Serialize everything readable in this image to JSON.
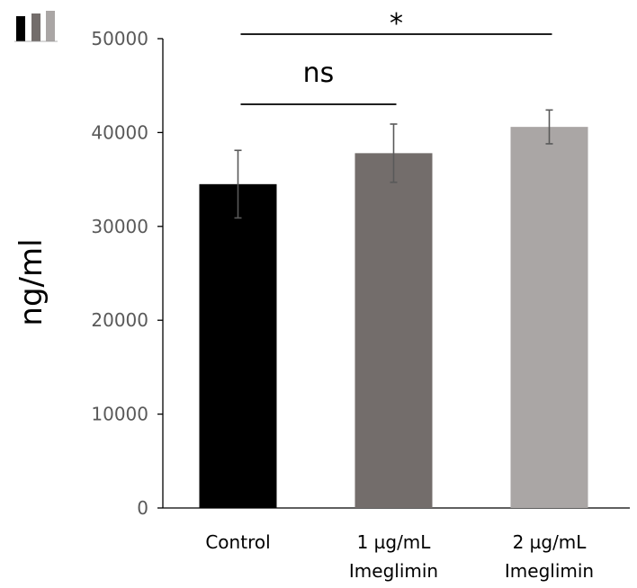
{
  "chart_data": {
    "type": "bar",
    "title": "",
    "xlabel": "",
    "ylabel": "ng/ml",
    "ylim": [
      0,
      50000
    ],
    "yticks": [
      "0",
      "10000",
      "20000",
      "30000",
      "40000",
      "50000"
    ],
    "categories": [
      {
        "line1": "Control",
        "line2": ""
      },
      {
        "line1": "1 µg/mL",
        "line2": "Imeglimin"
      },
      {
        "line1": "2 µg/mL",
        "line2": "Imeglimin"
      }
    ],
    "values": [
      34500,
      37800,
      40600
    ],
    "errors": [
      3600,
      3100,
      1800
    ],
    "colors": [
      "#000000",
      "#736d6b",
      "#aaa6a5"
    ],
    "significance": [
      {
        "label": "ns",
        "from": 0,
        "to": 1
      },
      {
        "label": "*",
        "from": 0,
        "to": 2
      }
    ]
  }
}
